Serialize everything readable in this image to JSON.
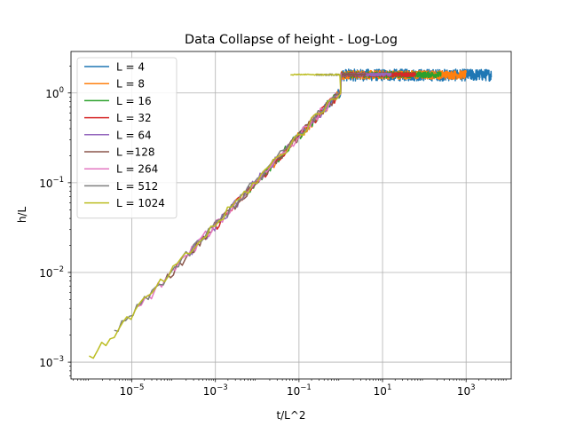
{
  "chart_data": {
    "type": "line",
    "title": "Data Collapse of height - Log-Log",
    "xlabel": "t/L^2",
    "ylabel": "h/L",
    "xscale": "log",
    "yscale": "log",
    "xlim": [
      3.5e-07,
      12000
    ],
    "ylim": [
      0.00065,
      2.9
    ],
    "x_ticks": [
      {
        "value": 1e-05,
        "base": "10",
        "exp": "−5"
      },
      {
        "value": 0.001,
        "base": "10",
        "exp": "−3"
      },
      {
        "value": 0.1,
        "base": "10",
        "exp": "−1"
      },
      {
        "value": 10,
        "base": "10",
        "exp": "1"
      },
      {
        "value": 1000,
        "base": "10",
        "exp": "3"
      }
    ],
    "y_ticks": [
      {
        "value": 0.001,
        "base": "10",
        "exp": "−3"
      },
      {
        "value": 0.01,
        "base": "10",
        "exp": "−2"
      },
      {
        "value": 0.1,
        "base": "10",
        "exp": "−1"
      },
      {
        "value": 1,
        "base": "10",
        "exp": "0"
      }
    ],
    "grid": true,
    "legend_position": "upper-left",
    "saturation_level": 1.6,
    "series": [
      {
        "name": "L = 4",
        "color": "#1f77b4",
        "x_start": 0.0625,
        "x_end": 4000,
        "y_start": 0.25,
        "noise": 0.3
      },
      {
        "name": "L = 8",
        "color": "#ff7f0e",
        "x_start": 0.0156,
        "x_end": 1000,
        "y_start": 0.125,
        "noise": 0.22
      },
      {
        "name": "L = 16",
        "color": "#2ca02c",
        "x_start": 0.0039,
        "x_end": 250,
        "y_start": 0.0625,
        "noise": 0.15
      },
      {
        "name": "L = 32",
        "color": "#d62728",
        "x_start": 0.00098,
        "x_end": 62,
        "y_start": 0.031,
        "noise": 0.11
      },
      {
        "name": "L = 64",
        "color": "#9467bd",
        "x_start": 0.00024,
        "x_end": 16,
        "y_start": 0.0156,
        "noise": 0.08
      },
      {
        "name": "L =128",
        "color": "#8c564b",
        "x_start": 6.1e-05,
        "x_end": 4,
        "y_start": 0.0078,
        "noise": 0.06
      },
      {
        "name": "L = 264",
        "color": "#e377c2",
        "x_start": 1.4e-05,
        "x_end": 1,
        "y_start": 0.0038,
        "noise": 0.05
      },
      {
        "name": "L = 512",
        "color": "#7f7f7f",
        "x_start": 3.8e-06,
        "x_end": 0.25,
        "y_start": 0.002,
        "noise": 0.04
      },
      {
        "name": "L = 1024",
        "color": "#bcbd22",
        "x_start": 9.5e-07,
        "x_end": 0.0625,
        "y_start": 0.001,
        "noise": 0.03
      }
    ]
  }
}
